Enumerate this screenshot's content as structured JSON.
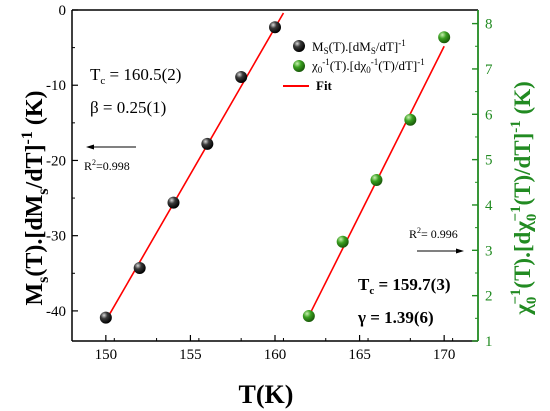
{
  "chart_data": {
    "type": "scatter",
    "xlabel": "T(K)",
    "ylabel_left": "M_s(T).[dM_s/dT]^-1 (K)",
    "ylabel_right": "χ0^-1(T).[dχ0^-1(T)/dT]^-1 (K)",
    "xlim": [
      148,
      172
    ],
    "ylim_left": [
      -44,
      0
    ],
    "ylim_right": [
      1,
      8.3
    ],
    "x_ticks": [
      150,
      155,
      160,
      165,
      170
    ],
    "y_left_ticks": [
      0,
      -10,
      -20,
      -30,
      -40
    ],
    "y_right_ticks": [
      1,
      2,
      3,
      4,
      5,
      6,
      7,
      8
    ],
    "colors": {
      "left_axis": "#000000",
      "right_axis": "#228b22",
      "fit": "#ff0000",
      "ms_marker": "#000000",
      "chi_marker": "#2e9a1e"
    },
    "series": [
      {
        "name": "M_S(T).[dM_S/dT]^-1",
        "axis": "left",
        "x": [
          150,
          152,
          154,
          156,
          158,
          160
        ],
        "y": [
          -40.9,
          -34.3,
          -25.6,
          -17.8,
          -8.9,
          -2.3
        ],
        "fit": {
          "x": [
            150,
            160.5
          ],
          "y": [
            -41.3,
            -0.4
          ]
        }
      },
      {
        "name": "χ0^-1(T).[dχ0^-1(T)/dT]^-1",
        "axis": "right",
        "x": [
          162,
          164,
          166,
          168,
          170
        ],
        "y": [
          1.55,
          3.19,
          4.55,
          5.88,
          7.7
        ],
        "fit": {
          "x": [
            162,
            170
          ],
          "y": [
            1.55,
            7.5
          ]
        }
      }
    ],
    "legend": {
      "position": "top-right",
      "entries": [
        {
          "label_main": "M",
          "label_sub": "S",
          "label_rest": "(T).[dM",
          "label_sub2": "S",
          "label_rest2": "/dT]",
          "label_sup": "-1",
          "marker": "black-sphere"
        },
        {
          "label_main": "χ",
          "label_sub": "0",
          "label_sup": "-1",
          "label_rest": "(T).[dχ",
          "label_sub2": "0",
          "label_sup2": "-1",
          "label_rest2": "(T)/dT]",
          "label_sup3": "-1",
          "marker": "green-sphere"
        },
        {
          "label": "Fit",
          "marker": "red-line"
        }
      ]
    },
    "annotations": {
      "left_tc": "T",
      "left_tc_sub": "c",
      "left_tc_value": " = 160.5(2)",
      "beta": "β = 0.25(1)",
      "left_r2_prefix": "R",
      "left_r2_sup": "2",
      "left_r2_value": "=0.998",
      "right_r2_prefix": "R",
      "right_r2_sup": "2",
      "right_r2_value": "= 0.996",
      "right_tc": "T",
      "right_tc_sub": "c",
      "right_tc_value": " = 159.7(3)",
      "gamma": "γ = 1.39(6)"
    },
    "axis_title_parts": {
      "x": "T(K)",
      "left": {
        "a": "M",
        "a_sub": "s",
        "b": "(T).[dM",
        "b_sub": "s",
        "c": "/dT]",
        "c_sup": "-1",
        "d": " (K)"
      },
      "right": {
        "a": "χ",
        "a_sub": "0",
        "a_sup": "−1",
        "b": "(T).[dχ",
        "b_sub": "0",
        "b_sup": "−1",
        "c": "(T)/dT]",
        "c_sup": "-1",
        "d": " (K)"
      }
    }
  }
}
